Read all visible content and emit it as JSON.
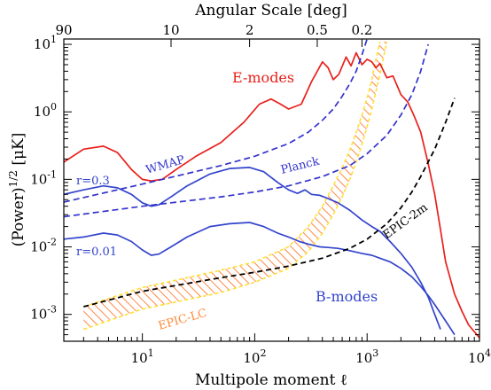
{
  "chart_data": {
    "type": "line",
    "xlabel": "Multipole moment ℓ",
    "ylabel": "(Power)^1/2 [μK]",
    "top_xlabel": "Angular Scale [deg]",
    "x_scale": "log",
    "y_scale": "log",
    "xlim": [
      2,
      10000
    ],
    "ylim": [
      0.0004,
      12
    ],
    "grid": false,
    "x_ticks": [
      {
        "value": 10,
        "base": "10",
        "exp": "1"
      },
      {
        "value": 100,
        "base": "10",
        "exp": "2"
      },
      {
        "value": 1000,
        "base": "10",
        "exp": "3"
      },
      {
        "value": 10000,
        "base": "10",
        "exp": "4"
      }
    ],
    "y_ticks": [
      {
        "value": 0.001,
        "base": "10",
        "exp": "-3"
      },
      {
        "value": 0.01,
        "base": "10",
        "exp": "-2"
      },
      {
        "value": 0.1,
        "base": "10",
        "exp": "-1"
      },
      {
        "value": 1,
        "base": "10",
        "exp": "0"
      },
      {
        "value": 10,
        "base": "10",
        "exp": "1"
      }
    ],
    "top_ticks": [
      {
        "value": 2,
        "label": "90"
      },
      {
        "value": 18,
        "label": "10"
      },
      {
        "value": 90,
        "label": "2"
      },
      {
        "value": 360,
        "label": "0.5"
      },
      {
        "value": 900,
        "label": "0.2"
      }
    ],
    "series": [
      {
        "key": "emodes",
        "color": "#e8201c",
        "dash": false,
        "points": [
          [
            2,
            0.18
          ],
          [
            3,
            0.28
          ],
          [
            4.5,
            0.31
          ],
          [
            6,
            0.25
          ],
          [
            8,
            0.14
          ],
          [
            10,
            0.1
          ],
          [
            12,
            0.095
          ],
          [
            15,
            0.1
          ],
          [
            20,
            0.14
          ],
          [
            30,
            0.22
          ],
          [
            50,
            0.35
          ],
          [
            80,
            0.7
          ],
          [
            110,
            1.3
          ],
          [
            140,
            1.55
          ],
          [
            170,
            1.3
          ],
          [
            200,
            1.1
          ],
          [
            260,
            1.3
          ],
          [
            320,
            2.8
          ],
          [
            400,
            5.5
          ],
          [
            450,
            4.5
          ],
          [
            500,
            3
          ],
          [
            560,
            3.6
          ],
          [
            650,
            6.5
          ],
          [
            720,
            4.8
          ],
          [
            800,
            7.5
          ],
          [
            900,
            5
          ],
          [
            1000,
            6
          ],
          [
            1100,
            5.5
          ],
          [
            1200,
            4.5
          ],
          [
            1300,
            5.2
          ],
          [
            1500,
            3.2
          ],
          [
            1700,
            3.4
          ],
          [
            2000,
            1.8
          ],
          [
            2300,
            1.4
          ],
          [
            2600,
            0.9
          ],
          [
            3000,
            0.5
          ],
          [
            3500,
            0.17
          ],
          [
            4000,
            0.06
          ],
          [
            4500,
            0.018
          ],
          [
            5000,
            0.006
          ],
          [
            6000,
            0.002
          ],
          [
            7000,
            0.0011
          ],
          [
            8000,
            0.0007
          ],
          [
            10000,
            0.00045
          ]
        ]
      },
      {
        "key": "bmodes-r03",
        "color": "#3344cc",
        "dash": false,
        "points": [
          [
            2,
            0.06
          ],
          [
            3,
            0.07
          ],
          [
            4.5,
            0.08
          ],
          [
            6,
            0.075
          ],
          [
            8,
            0.06
          ],
          [
            10,
            0.045
          ],
          [
            12,
            0.04
          ],
          [
            14,
            0.042
          ],
          [
            18,
            0.055
          ],
          [
            25,
            0.08
          ],
          [
            40,
            0.12
          ],
          [
            60,
            0.145
          ],
          [
            90,
            0.15
          ],
          [
            120,
            0.13
          ],
          [
            160,
            0.09
          ],
          [
            200,
            0.07
          ],
          [
            240,
            0.062
          ],
          [
            280,
            0.07
          ],
          [
            320,
            0.06
          ],
          [
            380,
            0.058
          ],
          [
            450,
            0.052
          ],
          [
            550,
            0.045
          ],
          [
            700,
            0.035
          ],
          [
            900,
            0.025
          ],
          [
            1100,
            0.02
          ],
          [
            1300,
            0.017
          ],
          [
            1600,
            0.012
          ],
          [
            2000,
            0.008
          ],
          [
            2500,
            0.005
          ],
          [
            3000,
            0.003
          ],
          [
            3500,
            0.0018
          ],
          [
            4000,
            0.001
          ],
          [
            4500,
            0.0006
          ]
        ]
      },
      {
        "key": "bmodes-r001",
        "color": "#3344cc",
        "dash": false,
        "points": [
          [
            2,
            0.013
          ],
          [
            3,
            0.014
          ],
          [
            4.5,
            0.016
          ],
          [
            6,
            0.015
          ],
          [
            8,
            0.012
          ],
          [
            10,
            0.009
          ],
          [
            12,
            0.0075
          ],
          [
            14,
            0.0078
          ],
          [
            18,
            0.01
          ],
          [
            25,
            0.014
          ],
          [
            40,
            0.02
          ],
          [
            60,
            0.022
          ],
          [
            90,
            0.023
          ],
          [
            120,
            0.02
          ],
          [
            160,
            0.016
          ],
          [
            200,
            0.014
          ],
          [
            250,
            0.012
          ],
          [
            300,
            0.011
          ],
          [
            380,
            0.01
          ],
          [
            450,
            0.0098
          ],
          [
            550,
            0.0095
          ],
          [
            700,
            0.0088
          ],
          [
            900,
            0.008
          ],
          [
            1100,
            0.0075
          ],
          [
            1300,
            0.0068
          ],
          [
            1600,
            0.006
          ],
          [
            2000,
            0.0048
          ],
          [
            2500,
            0.0036
          ],
          [
            3000,
            0.0026
          ],
          [
            3500,
            0.0019
          ],
          [
            4000,
            0.0014
          ],
          [
            5000,
            0.0008
          ],
          [
            6000,
            0.0005
          ]
        ]
      },
      {
        "key": "wmap",
        "color": "#3333cc",
        "dash": true,
        "points": [
          [
            2,
            0.046
          ],
          [
            10,
            0.085
          ],
          [
            50,
            0.16
          ],
          [
            100,
            0.22
          ],
          [
            200,
            0.34
          ],
          [
            300,
            0.5
          ],
          [
            400,
            0.75
          ],
          [
            500,
            1.1
          ],
          [
            600,
            1.7
          ],
          [
            700,
            2.6
          ],
          [
            800,
            4
          ],
          [
            900,
            7
          ],
          [
            1000,
            12
          ]
        ]
      },
      {
        "key": "planck",
        "color": "#3333cc",
        "dash": true,
        "points": [
          [
            2,
            0.028
          ],
          [
            10,
            0.04
          ],
          [
            50,
            0.055
          ],
          [
            100,
            0.065
          ],
          [
            200,
            0.08
          ],
          [
            400,
            0.11
          ],
          [
            700,
            0.16
          ],
          [
            1000,
            0.24
          ],
          [
            1500,
            0.45
          ],
          [
            2000,
            0.9
          ],
          [
            2500,
            1.8
          ],
          [
            3000,
            4
          ],
          [
            3500,
            10
          ]
        ]
      },
      {
        "key": "epic2m",
        "color": "#000000",
        "dash": true,
        "points": [
          [
            3,
            0.0013
          ],
          [
            10,
            0.0022
          ],
          [
            50,
            0.0035
          ],
          [
            100,
            0.0042
          ],
          [
            200,
            0.0052
          ],
          [
            400,
            0.0068
          ],
          [
            700,
            0.0095
          ],
          [
            1000,
            0.013
          ],
          [
            1500,
            0.022
          ],
          [
            2000,
            0.038
          ],
          [
            2500,
            0.065
          ],
          [
            3000,
            0.11
          ],
          [
            4000,
            0.28
          ],
          [
            5000,
            0.7
          ],
          [
            6000,
            1.6
          ]
        ]
      }
    ],
    "band": {
      "key": "epic-lc",
      "fill": "#ff6a1a",
      "edge": "#ffe033",
      "upper": [
        [
          3,
          0.0013
        ],
        [
          10,
          0.0025
        ],
        [
          50,
          0.0045
        ],
        [
          100,
          0.006
        ],
        [
          200,
          0.01
        ],
        [
          300,
          0.02
        ],
        [
          400,
          0.04
        ],
        [
          500,
          0.08
        ],
        [
          600,
          0.15
        ],
        [
          700,
          0.27
        ],
        [
          800,
          0.5
        ],
        [
          900,
          0.9
        ],
        [
          1000,
          1.6
        ],
        [
          1100,
          3
        ],
        [
          1200,
          6
        ],
        [
          1300,
          11
        ]
      ],
      "lower": [
        [
          3,
          0.0006
        ],
        [
          10,
          0.0012
        ],
        [
          50,
          0.0021
        ],
        [
          100,
          0.003
        ],
        [
          200,
          0.0048
        ],
        [
          300,
          0.0085
        ],
        [
          400,
          0.016
        ],
        [
          500,
          0.03
        ],
        [
          600,
          0.055
        ],
        [
          700,
          0.1
        ],
        [
          800,
          0.18
        ],
        [
          900,
          0.33
        ],
        [
          1000,
          0.6
        ],
        [
          1100,
          1.1
        ],
        [
          1200,
          2
        ],
        [
          1300,
          3.6
        ],
        [
          1500,
          11
        ]
      ]
    },
    "annotations": [
      {
        "key": "emodes",
        "text": "E-modes",
        "color": "#e8201c"
      },
      {
        "key": "wmap",
        "text": "WMAP",
        "color": "#3333cc"
      },
      {
        "key": "planck",
        "text": "Planck",
        "color": "#3333cc"
      },
      {
        "key": "r03",
        "text": "r=0.3",
        "color": "#3344cc"
      },
      {
        "key": "r001",
        "text": "r=0.01",
        "color": "#3344cc"
      },
      {
        "key": "epic2m",
        "text": "EPIC-2m",
        "color": "#000000"
      },
      {
        "key": "bmodes",
        "text": "B-modes",
        "color": "#3344cc"
      },
      {
        "key": "epiclc",
        "text": "EPIC-LC",
        "color": "#ff8a3a"
      }
    ]
  }
}
